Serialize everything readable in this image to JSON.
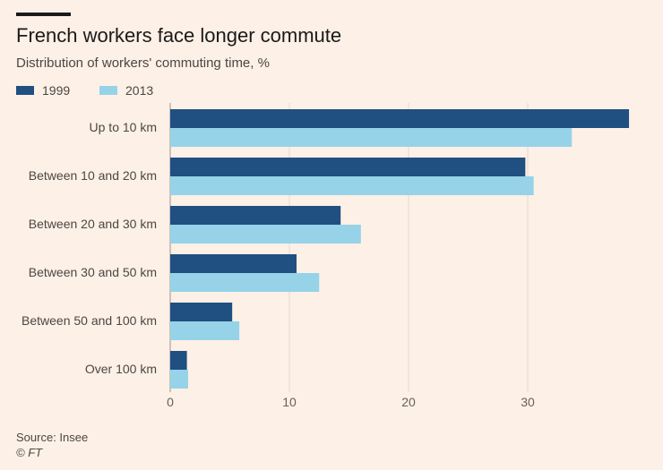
{
  "chart_data": {
    "type": "bar",
    "orientation": "horizontal",
    "title": "French workers face longer commute",
    "subtitle": "Distribution of workers' commuting time, %",
    "categories": [
      "Up to 10 km",
      "Between 10 and 20 km",
      "Between 20 and 30 km",
      "Between 30 and 50 km",
      "Between 50 and 100 km",
      "Over 100 km"
    ],
    "series": [
      {
        "name": "1999",
        "color": "#204f82",
        "values": [
          38.5,
          29.8,
          14.3,
          10.6,
          5.2,
          1.4
        ]
      },
      {
        "name": "2013",
        "color": "#96d3e8",
        "values": [
          33.7,
          30.5,
          16.0,
          12.5,
          5.8,
          1.5
        ]
      }
    ],
    "xlim": [
      0,
      40
    ],
    "xticks": [
      0,
      10,
      20,
      30
    ],
    "grid": true,
    "legend_position": "top-left"
  },
  "footer": {
    "source": "Source: Insee",
    "copyright": "© FT"
  }
}
